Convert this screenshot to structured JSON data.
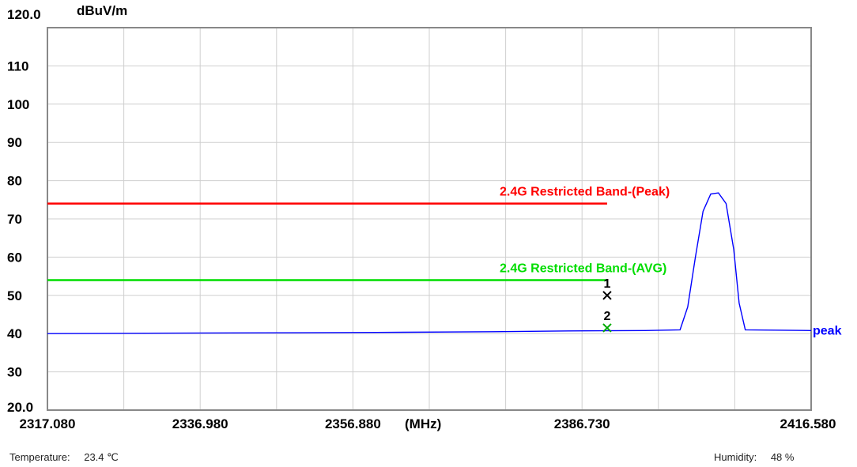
{
  "chart_data": {
    "type": "line",
    "ylabel": "dBuV/m",
    "xunit": "(MHz)",
    "xlim": [
      2317.08,
      2416.58
    ],
    "ylim": [
      20.0,
      120.0
    ],
    "x_tick_labels": [
      "2317.080",
      "2336.980",
      "2356.880",
      "2386.730",
      "2416.580"
    ],
    "x_tick_values": [
      2317.08,
      2336.98,
      2356.88,
      2386.73,
      2416.58
    ],
    "y_tick_labels": [
      "120.0",
      "110",
      "100",
      "90",
      "80",
      "70",
      "60",
      "50",
      "40",
      "30",
      "20.0"
    ],
    "y_tick_values": [
      120,
      110,
      100,
      90,
      80,
      70,
      60,
      50,
      40,
      30,
      20
    ],
    "grid": true,
    "limits": [
      {
        "label": "2.4G Restricted Band-(Peak)",
        "value": 74,
        "x_end": 2390.0,
        "color": "#ff0000"
      },
      {
        "label": "2.4G Restricted Band-(AVG)",
        "value": 54,
        "x_end": 2390.0,
        "color": "#00dd00"
      }
    ],
    "series": [
      {
        "name": "peak",
        "color": "#0000ff",
        "x": [
          2317.08,
          2330,
          2345,
          2360,
          2375,
          2385,
          2395,
          2399.5,
          2400.5,
          2401.5,
          2402.5,
          2403.5,
          2404.5,
          2405.5,
          2406.5,
          2407.2,
          2408,
          2416.58
        ],
        "y": [
          40.0,
          40.1,
          40.2,
          40.3,
          40.5,
          40.7,
          40.8,
          41.0,
          47.0,
          60.0,
          72.0,
          76.5,
          76.8,
          74.0,
          62.0,
          48.0,
          41.0,
          40.8
        ]
      }
    ],
    "markers": [
      {
        "label": "1",
        "x": 2390.0,
        "y": 50.0,
        "color": "#000000"
      },
      {
        "label": "2",
        "x": 2390.0,
        "y": 41.5,
        "color": "#00aa00"
      }
    ]
  },
  "footer": {
    "temperature_label": "Temperature:",
    "temperature_value": "23.4 ℃",
    "humidity_label": "Humidity:",
    "humidity_value": "48 %"
  }
}
